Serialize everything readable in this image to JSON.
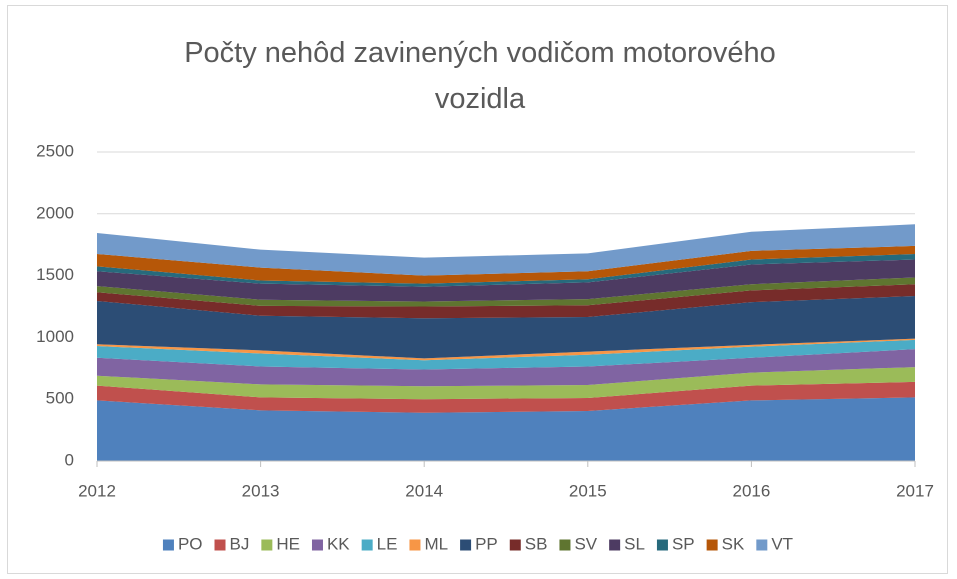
{
  "chart_data": {
    "type": "stacked_area",
    "title": "Počty nehôd zavinených vodičom motorového vozidla",
    "categories": [
      "2012",
      "2013",
      "2014",
      "2015",
      "2016",
      "2017"
    ],
    "ylim": [
      0,
      2500
    ],
    "yticks": [
      0,
      500,
      1000,
      1500,
      2000,
      2500
    ],
    "grid": true,
    "legend": "bottom",
    "series": [
      {
        "name": "PO",
        "color": "#4f81bd",
        "values": [
          490,
          410,
          390,
          405,
          490,
          515
        ]
      },
      {
        "name": "BJ",
        "color": "#c0504d",
        "values": [
          120,
          105,
          110,
          105,
          120,
          125
        ]
      },
      {
        "name": "HE",
        "color": "#9bbb59",
        "values": [
          80,
          105,
          105,
          105,
          105,
          120
        ]
      },
      {
        "name": "KK",
        "color": "#8064a2",
        "values": [
          145,
          145,
          135,
          150,
          120,
          145
        ]
      },
      {
        "name": "LE",
        "color": "#4bacc6",
        "values": [
          95,
          105,
          75,
          95,
          90,
          75
        ]
      },
      {
        "name": "ML",
        "color": "#f79646",
        "values": [
          15,
          25,
          15,
          25,
          15,
          10
        ]
      },
      {
        "name": "PP",
        "color": "#2c4d75",
        "values": [
          350,
          280,
          325,
          280,
          345,
          345
        ]
      },
      {
        "name": "SB",
        "color": "#772c2a",
        "values": [
          70,
          80,
          95,
          95,
          95,
          95
        ]
      },
      {
        "name": "SV",
        "color": "#5f7530",
        "values": [
          50,
          50,
          40,
          50,
          50,
          55
        ]
      },
      {
        "name": "SL",
        "color": "#4d3b62",
        "values": [
          120,
          130,
          120,
          135,
          160,
          145
        ]
      },
      {
        "name": "SP",
        "color": "#276a7c",
        "values": [
          40,
          25,
          25,
          25,
          40,
          45
        ]
      },
      {
        "name": "SK",
        "color": "#b65708",
        "values": [
          100,
          105,
          65,
          65,
          70,
          65
        ]
      },
      {
        "name": "VT",
        "color": "#729aca",
        "values": [
          170,
          145,
          145,
          145,
          155,
          175
        ]
      }
    ]
  }
}
